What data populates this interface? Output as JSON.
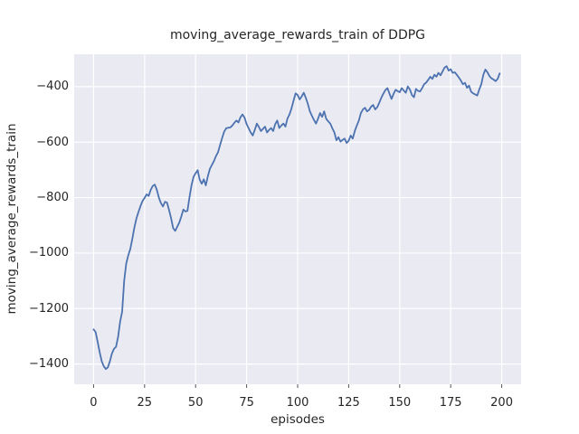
{
  "chart_data": {
    "type": "line",
    "title": "moving_average_rewards_train of DDPG",
    "xlabel": "episodes",
    "ylabel": "moving_average_rewards_train",
    "x_ticks": [
      0,
      25,
      50,
      75,
      100,
      125,
      150,
      175,
      200
    ],
    "y_ticks": [
      -400,
      -600,
      -800,
      -1000,
      -1200,
      -1400
    ],
    "xlim": [
      -9.5,
      209.5
    ],
    "ylim": [
      -1473,
      -283
    ],
    "grid": true,
    "legend": "none",
    "style": "seaborn-darkgrid",
    "colors": {
      "line": "#4c72b0",
      "plot_background": "#eaeaf2",
      "grid": "#ffffff",
      "text": "#262626",
      "figure_background": "#ffffff"
    },
    "series": [
      {
        "name": "moving_average_rewards_train",
        "x_start": 0,
        "x_step": 1,
        "values": [
          -1275,
          -1285,
          -1320,
          -1358,
          -1390,
          -1408,
          -1418,
          -1412,
          -1390,
          -1362,
          -1345,
          -1338,
          -1303,
          -1248,
          -1211,
          -1100,
          -1038,
          -1008,
          -985,
          -948,
          -908,
          -875,
          -852,
          -830,
          -812,
          -801,
          -788,
          -794,
          -772,
          -758,
          -753,
          -772,
          -800,
          -820,
          -832,
          -815,
          -818,
          -845,
          -875,
          -910,
          -920,
          -905,
          -890,
          -868,
          -843,
          -850,
          -848,
          -799,
          -755,
          -725,
          -712,
          -701,
          -735,
          -750,
          -734,
          -756,
          -723,
          -696,
          -682,
          -668,
          -650,
          -636,
          -610,
          -585,
          -562,
          -550,
          -548,
          -547,
          -540,
          -530,
          -522,
          -529,
          -510,
          -500,
          -512,
          -535,
          -550,
          -565,
          -576,
          -556,
          -533,
          -545,
          -560,
          -552,
          -544,
          -565,
          -556,
          -549,
          -560,
          -535,
          -522,
          -549,
          -540,
          -533,
          -544,
          -515,
          -500,
          -478,
          -450,
          -424,
          -430,
          -446,
          -435,
          -422,
          -440,
          -462,
          -489,
          -505,
          -520,
          -533,
          -515,
          -495,
          -509,
          -489,
          -516,
          -525,
          -533,
          -550,
          -565,
          -593,
          -582,
          -598,
          -592,
          -587,
          -603,
          -595,
          -576,
          -587,
          -560,
          -540,
          -522,
          -495,
          -482,
          -476,
          -489,
          -484,
          -472,
          -466,
          -482,
          -474,
          -458,
          -440,
          -425,
          -412,
          -405,
          -425,
          -444,
          -426,
          -411,
          -416,
          -420,
          -405,
          -414,
          -422,
          -399,
          -410,
          -430,
          -438,
          -408,
          -415,
          -417,
          -405,
          -391,
          -385,
          -375,
          -364,
          -372,
          -357,
          -364,
          -350,
          -359,
          -345,
          -331,
          -326,
          -342,
          -337,
          -350,
          -348,
          -357,
          -367,
          -378,
          -391,
          -386,
          -404,
          -396,
          -418,
          -424,
          -428,
          -432,
          -410,
          -391,
          -357,
          -338,
          -348,
          -362,
          -370,
          -374,
          -380,
          -372,
          -352
        ]
      }
    ]
  }
}
